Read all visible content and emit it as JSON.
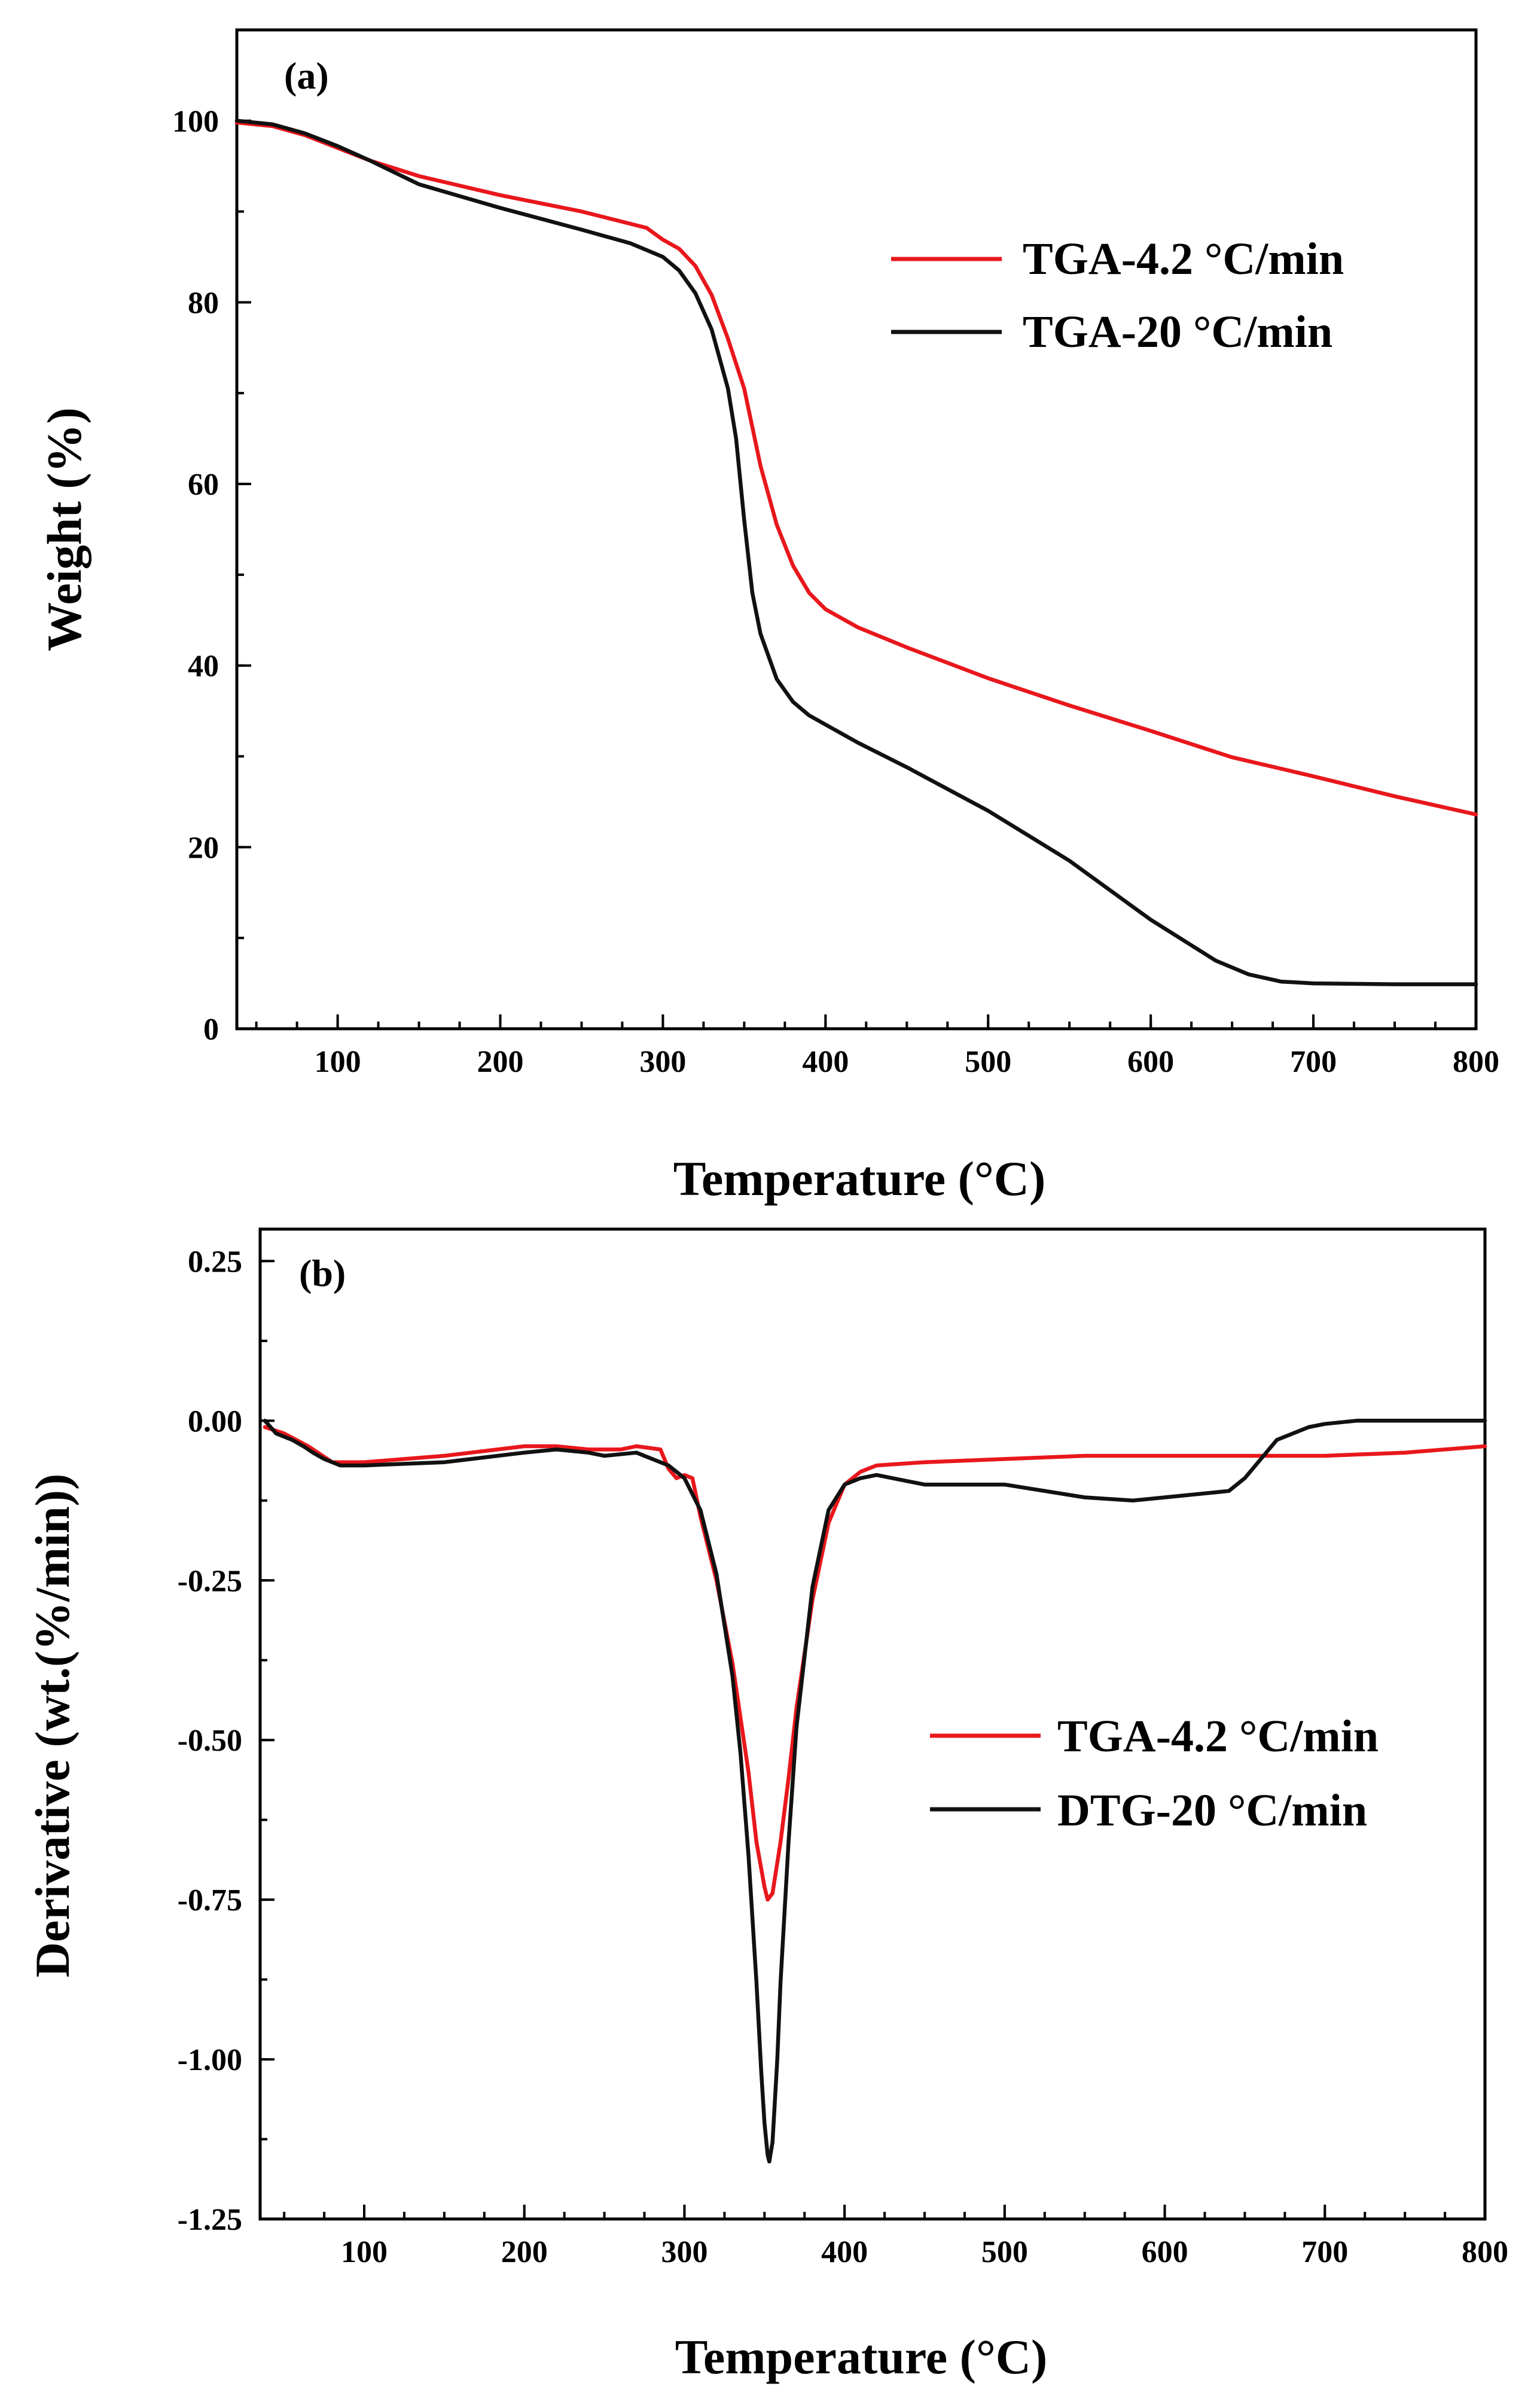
{
  "chart_data": [
    {
      "type": "line",
      "panel_label": "(a)",
      "xlabel": "Temperature (°C)",
      "ylabel": "Weight (%)",
      "xlim": [
        38,
        800
      ],
      "ylim": [
        0,
        110
      ],
      "xticks": [
        100,
        200,
        300,
        400,
        500,
        600,
        700,
        800
      ],
      "yticks": [
        0,
        20,
        40,
        60,
        80,
        100
      ],
      "grid": false,
      "legend_position": "top-right",
      "series": [
        {
          "name": "TGA-4.2 °C/min",
          "color": "#e8171c",
          "x": [
            38,
            60,
            80,
            100,
            120,
            150,
            200,
            250,
            290,
            300,
            310,
            320,
            330,
            340,
            350,
            360,
            370,
            380,
            390,
            400,
            420,
            450,
            500,
            550,
            600,
            650,
            700,
            750,
            800
          ],
          "y": [
            99.8,
            99.4,
            98.4,
            97.0,
            95.6,
            93.9,
            91.8,
            90.0,
            88.2,
            86.9,
            85.9,
            84.0,
            80.8,
            76.0,
            70.5,
            62.0,
            55.5,
            51.0,
            48.0,
            46.2,
            44.2,
            42.0,
            38.6,
            35.6,
            32.8,
            29.9,
            27.8,
            25.6,
            23.6
          ]
        },
        {
          "name": "TGA-20 °C/min",
          "color": "#111111",
          "x": [
            38,
            60,
            80,
            100,
            120,
            150,
            200,
            250,
            280,
            300,
            310,
            320,
            330,
            340,
            345,
            350,
            355,
            360,
            370,
            380,
            390,
            400,
            420,
            450,
            500,
            550,
            600,
            640,
            660,
            680,
            700,
            750,
            800
          ],
          "y": [
            100.0,
            99.6,
            98.6,
            97.2,
            95.6,
            93.0,
            90.4,
            88.0,
            86.5,
            85.0,
            83.5,
            81.0,
            77.0,
            70.5,
            65.0,
            56.0,
            48.0,
            43.5,
            38.5,
            36.0,
            34.5,
            33.5,
            31.5,
            28.8,
            24.0,
            18.5,
            12.0,
            7.5,
            6.0,
            5.2,
            5.0,
            4.9,
            4.9
          ]
        }
      ]
    },
    {
      "type": "line",
      "panel_label": "(b)",
      "xlabel": "Temperature (°C)",
      "ylabel": "Derivative (wt.(%/min))",
      "xlim": [
        35,
        800
      ],
      "ylim": [
        -1.25,
        0.3
      ],
      "xticks": [
        100,
        200,
        300,
        400,
        500,
        600,
        700,
        800
      ],
      "yticks": [
        "0.25",
        "0.00",
        "-0.25",
        "-0.50",
        "-0.75",
        "-1.00",
        "-1.25"
      ],
      "grid": false,
      "legend_position": "center-right",
      "series": [
        {
          "name": "TGA-4.2 °C/min",
          "color": "#e8171c",
          "x": [
            38,
            50,
            65,
            80,
            100,
            150,
            200,
            220,
            240,
            260,
            270,
            285,
            290,
            295,
            300,
            305,
            310,
            320,
            330,
            340,
            345,
            350,
            352,
            355,
            360,
            365,
            370,
            380,
            390,
            400,
            410,
            420,
            450,
            500,
            550,
            600,
            650,
            700,
            750,
            800
          ],
          "y": [
            -0.01,
            -0.02,
            -0.04,
            -0.065,
            -0.065,
            -0.055,
            -0.04,
            -0.04,
            -0.045,
            -0.045,
            -0.04,
            -0.045,
            -0.075,
            -0.09,
            -0.085,
            -0.09,
            -0.15,
            -0.25,
            -0.38,
            -0.55,
            -0.66,
            -0.73,
            -0.75,
            -0.74,
            -0.66,
            -0.56,
            -0.45,
            -0.28,
            -0.16,
            -0.1,
            -0.08,
            -0.07,
            -0.065,
            -0.06,
            -0.055,
            -0.055,
            -0.055,
            -0.055,
            -0.05,
            -0.04
          ]
        },
        {
          "name": "DTG-20 °C/min",
          "color": "#111111",
          "x": [
            38,
            45,
            55,
            62,
            68,
            75,
            85,
            100,
            150,
            200,
            220,
            240,
            250,
            270,
            290,
            300,
            310,
            320,
            330,
            335,
            340,
            345,
            348,
            350,
            352,
            353,
            355,
            358,
            360,
            365,
            370,
            380,
            390,
            400,
            410,
            420,
            430,
            450,
            500,
            550,
            580,
            600,
            640,
            650,
            660,
            670,
            690,
            700,
            720,
            750,
            800
          ],
          "y": [
            0.0,
            -0.02,
            -0.03,
            -0.04,
            -0.05,
            -0.06,
            -0.07,
            -0.07,
            -0.065,
            -0.05,
            -0.045,
            -0.05,
            -0.055,
            -0.05,
            -0.07,
            -0.09,
            -0.14,
            -0.24,
            -0.4,
            -0.52,
            -0.68,
            -0.88,
            -1.02,
            -1.1,
            -1.15,
            -1.16,
            -1.13,
            -1.0,
            -0.88,
            -0.66,
            -0.48,
            -0.26,
            -0.14,
            -0.1,
            -0.09,
            -0.085,
            -0.09,
            -0.1,
            -0.1,
            -0.12,
            -0.125,
            -0.12,
            -0.11,
            -0.09,
            -0.06,
            -0.03,
            -0.01,
            -0.005,
            0.0,
            0.0,
            0.0
          ]
        }
      ]
    }
  ]
}
